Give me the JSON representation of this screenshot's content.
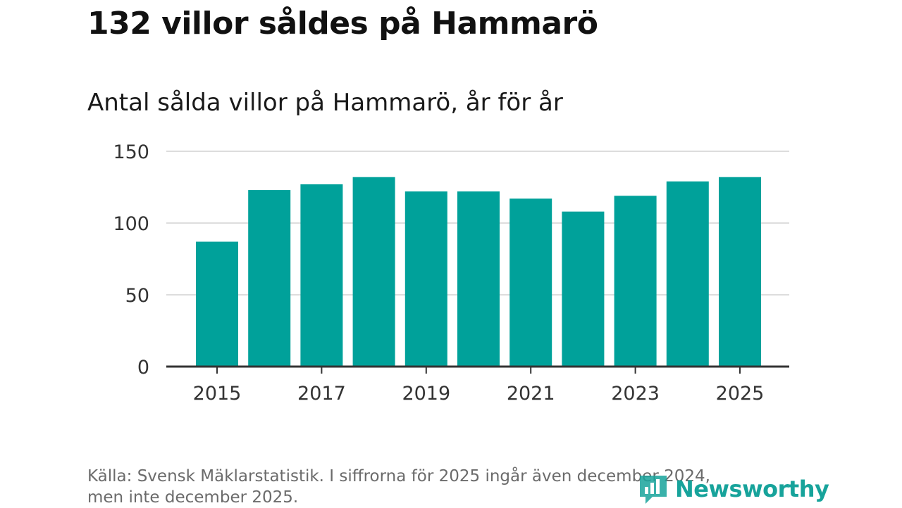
{
  "header": {
    "title": "132 villor såldes på Hammarö",
    "subtitle": "Antal sålda villor på Hammarö, år för år"
  },
  "footer": {
    "source_line1": "Källa: Svensk Mäklarstatistik. I siffrorna för 2025 ingår även december 2024,",
    "source_line2": "men inte december 2025."
  },
  "brand": {
    "name": "Newsworthy",
    "icon": "newsworthy-logo-icon"
  },
  "colors": {
    "bar": "#00a19a",
    "grid": "#dddddd",
    "axis": "#333333",
    "brand": "#17a39b"
  },
  "chart_data": {
    "type": "bar",
    "title": "Antal sålda villor på Hammarö, år för år",
    "xlabel": "",
    "ylabel": "",
    "categories": [
      "2015",
      "2016",
      "2017",
      "2018",
      "2019",
      "2020",
      "2021",
      "2022",
      "2023",
      "2024",
      "2025"
    ],
    "values": [
      87,
      123,
      127,
      132,
      122,
      122,
      117,
      108,
      119,
      129,
      132
    ],
    "ylim": [
      0,
      150
    ],
    "yticks": [
      "0",
      "50",
      "100",
      "150"
    ],
    "xticks": [
      "2015",
      "2017",
      "2019",
      "2021",
      "2023",
      "2025"
    ],
    "grid": true
  }
}
